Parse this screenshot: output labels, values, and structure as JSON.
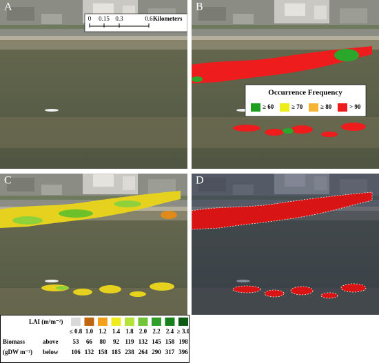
{
  "panels": [
    {
      "label": "A"
    },
    {
      "label": "B"
    },
    {
      "label": "C"
    },
    {
      "label": "D"
    }
  ],
  "scale_bar": {
    "ticks": [
      "0",
      "0.15",
      "0.3",
      "0.6"
    ],
    "unit": "Kilometers"
  },
  "occurrence_legend": {
    "title": "Occurrence Frequency",
    "items": [
      {
        "label": "≥ 60",
        "color": "#1e9e1e"
      },
      {
        "label": "≥ 70",
        "color": "#eded1a"
      },
      {
        "label": "≥ 80",
        "color": "#f5b433"
      },
      {
        "label": "> 90",
        "color": "#ee1c1c"
      }
    ]
  },
  "lai_table": {
    "lai_label": "LAI (m²m⁻²)",
    "biomass_label": "Biomass",
    "biomass_unit": "(gDW m⁻²)",
    "above_label": "above",
    "below_label": "below",
    "classes": [
      {
        "lai": "≤ 0.8",
        "color": "#d9d9d9",
        "above": "53",
        "below": "106"
      },
      {
        "lai": "1.0",
        "color": "#c0640f",
        "above": "66",
        "below": "132"
      },
      {
        "lai": "1.2",
        "color": "#f5a01a",
        "above": "80",
        "below": "158"
      },
      {
        "lai": "1.4",
        "color": "#f0ec1c",
        "above": "92",
        "below": "185"
      },
      {
        "lai": "1.8",
        "color": "#b5e33a",
        "above": "119",
        "below": "238"
      },
      {
        "lai": "2.0",
        "color": "#74c43a",
        "above": "132",
        "below": "264"
      },
      {
        "lai": "2.2",
        "color": "#2f9e2a",
        "above": "145",
        "below": "290"
      },
      {
        "lai": "2.4",
        "color": "#17801d",
        "above": "158",
        "below": "317"
      },
      {
        "lai": "≥ 3.0",
        "color": "#0c5a14",
        "above": "198",
        "below": "396"
      }
    ]
  }
}
